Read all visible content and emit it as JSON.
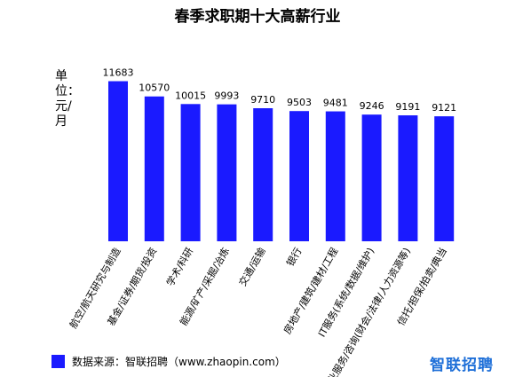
{
  "chart_data": {
    "type": "bar",
    "title": "春季求职期十大高薪行业",
    "ylabel": "单位：元/月",
    "categories": [
      "航空/航天研究与制造",
      "基金/证券/期货/投资",
      "学术/科研",
      "能源/矿产/采掘/冶炼",
      "交通/运输",
      "银行",
      "房地产/建筑/建材/工程",
      "IT服务(系统/数据/维护)",
      "专业服务/咨询(财会/法律/人力资源等)",
      "信托/担保/拍卖/典当"
    ],
    "values": [
      11683,
      10570,
      10015,
      9993,
      9710,
      9503,
      9481,
      9246,
      9191,
      9121
    ],
    "ylim": [
      0,
      12300
    ],
    "bar_color": "#1a1aff",
    "grid": false
  },
  "legend": {
    "label": "数据来源：智联招聘（www.zhaopin.com）",
    "color": "#1a1aff"
  },
  "logo": {
    "text": "智联招聘",
    "color": "#1e6fd8"
  }
}
